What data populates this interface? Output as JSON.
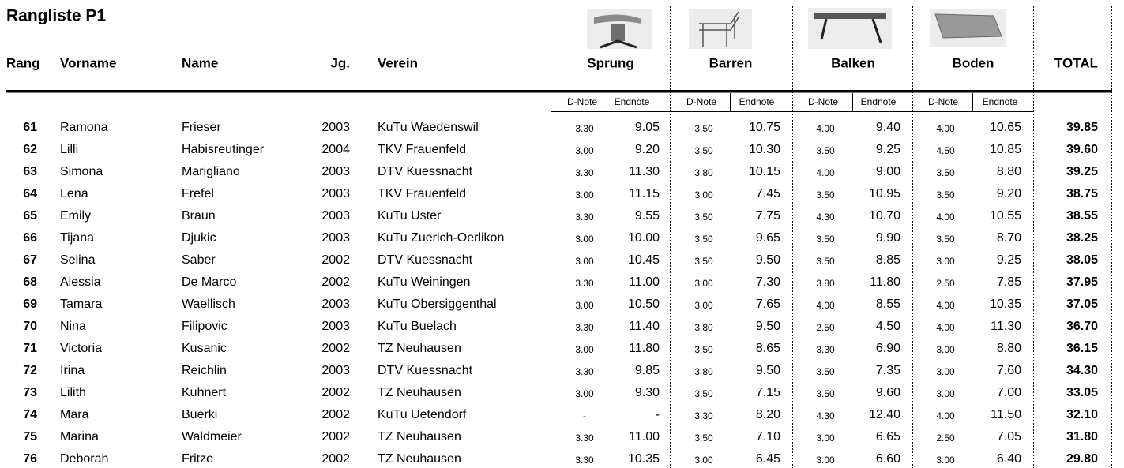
{
  "header": {
    "title": "Rangliste P1",
    "columns": [
      "Rang",
      "Vorname",
      "Name",
      "Jg.",
      "Verein",
      "Sprung",
      "Barren",
      "Balken",
      "Boden",
      "TOTAL"
    ],
    "subcolumns": [
      "D-Note",
      "Endnote",
      "D-Note",
      "Endnote",
      "D-Note",
      "Endnote",
      "D-Note",
      "Endnote"
    ]
  },
  "table": {
    "rows": [
      [
        61,
        "Ramona",
        "Frieser",
        2003,
        "KuTu Waedenswil",
        "3.30",
        "9.05",
        "3.50",
        "10.75",
        "4.00",
        "9.40",
        "4.00",
        "10.65",
        "39.85"
      ],
      [
        62,
        "Lilli",
        "Habisreutinger",
        2004,
        "TKV Frauenfeld",
        "3.00",
        "9.20",
        "3.50",
        "10.30",
        "3.50",
        "9.25",
        "4.50",
        "10.85",
        "39.60"
      ],
      [
        63,
        "Simona",
        "Marigliano",
        2003,
        "DTV Kuessnacht",
        "3.30",
        "11.30",
        "3.80",
        "10.15",
        "4.00",
        "9.00",
        "3.50",
        "8.80",
        "39.25"
      ],
      [
        64,
        "Lena",
        "Frefel",
        2003,
        "TKV Frauenfeld",
        "3.00",
        "11.15",
        "3.00",
        "7.45",
        "3.50",
        "10.95",
        "3.50",
        "9.20",
        "38.75"
      ],
      [
        65,
        "Emily",
        "Braun",
        2003,
        "KuTu Uster",
        "3.30",
        "9.55",
        "3.50",
        "7.75",
        "4.30",
        "10.70",
        "4.00",
        "10.55",
        "38.55"
      ],
      [
        66,
        "Tijana",
        "Djukic",
        2003,
        "KuTu Zuerich-Oerlikon",
        "3.00",
        "10.00",
        "3.50",
        "9.65",
        "3.50",
        "9.90",
        "3.50",
        "8.70",
        "38.25"
      ],
      [
        67,
        "Selina",
        "Saber",
        2002,
        "DTV Kuessnacht",
        "3.00",
        "10.45",
        "3.50",
        "9.50",
        "3.50",
        "8.85",
        "3.00",
        "9.25",
        "38.05"
      ],
      [
        68,
        "Alessia",
        "De Marco",
        2002,
        "KuTu Weiningen",
        "3.30",
        "11.00",
        "3.00",
        "7.30",
        "3.80",
        "11.80",
        "2.50",
        "7.85",
        "37.95"
      ],
      [
        69,
        "Tamara",
        "Waellisch",
        2003,
        "KuTu Obersiggenthal",
        "3.00",
        "10.50",
        "3.00",
        "7.65",
        "4.00",
        "8.55",
        "4.00",
        "10.35",
        "37.05"
      ],
      [
        70,
        "Nina",
        "Filipovic",
        2003,
        "KuTu Buelach",
        "3.30",
        "11.40",
        "3.80",
        "9.50",
        "2.50",
        "4.50",
        "4.00",
        "11.30",
        "36.70"
      ],
      [
        71,
        "Victoria",
        "Kusanic",
        2002,
        "TZ Neuhausen",
        "3.00",
        "11.80",
        "3.50",
        "8.65",
        "3.30",
        "6.90",
        "3.00",
        "8.80",
        "36.15"
      ],
      [
        72,
        "Irina",
        "Reichlin",
        2003,
        "DTV Kuessnacht",
        "3.30",
        "9.85",
        "3.80",
        "9.50",
        "3.50",
        "7.35",
        "3.00",
        "7.60",
        "34.30"
      ],
      [
        73,
        "Lilith",
        "Kuhnert",
        2002,
        "TZ Neuhausen",
        "3.00",
        "9.30",
        "3.50",
        "7.15",
        "3.50",
        "9.60",
        "3.00",
        "7.00",
        "33.05"
      ],
      [
        74,
        "Mara",
        "Buerki",
        2002,
        "KuTu Uetendorf",
        "-",
        "-",
        "3.30",
        "8.20",
        "4.30",
        "12.40",
        "4.00",
        "11.50",
        "32.10"
      ],
      [
        75,
        "Marina",
        "Waldmeier",
        2002,
        "TZ Neuhausen",
        "3.30",
        "11.00",
        "3.50",
        "7.10",
        "3.00",
        "6.65",
        "2.50",
        "7.05",
        "31.80"
      ],
      [
        76,
        "Deborah",
        "Fritze",
        2002,
        "TZ Neuhausen",
        "3.30",
        "10.35",
        "3.00",
        "6.45",
        "3.00",
        "6.60",
        "3.00",
        "6.40",
        "29.80"
      ]
    ]
  }
}
